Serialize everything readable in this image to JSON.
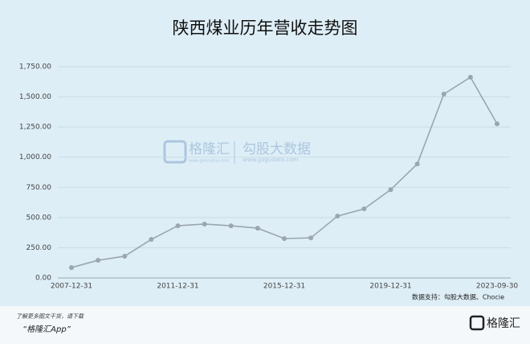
{
  "chart_data": {
    "type": "line",
    "title": "陕西煤业历年营收走势图",
    "categories": [
      "2007-12-31",
      null,
      null,
      null,
      "2011-12-31",
      null,
      null,
      null,
      "2015-12-31",
      null,
      null,
      null,
      "2019-12-31",
      null,
      null,
      null,
      "2023-09-30"
    ],
    "series": [
      {
        "name": "营收",
        "color": "#9aa6b2",
        "values": [
          86,
          146,
          180,
          319,
          432,
          446,
          432,
          412,
          326,
          332,
          512,
          572,
          731,
          944,
          1523,
          1663,
          1277
        ]
      }
    ],
    "ylim": [
      0,
      1750
    ],
    "yticks": [
      {
        "value": 0,
        "label": "0.00"
      },
      {
        "value": 250,
        "label": "250.00"
      },
      {
        "value": 500,
        "label": "500.00"
      },
      {
        "value": 750,
        "label": "750.00"
      },
      {
        "value": 1000,
        "label": "1,000.00"
      },
      {
        "value": 1250,
        "label": "1,250.00"
      },
      {
        "value": 1500,
        "label": "1,500.00"
      },
      {
        "value": 1750,
        "label": "1,750.00"
      }
    ],
    "grid": true,
    "source": "数据支持：勾股大数据、Chocie"
  },
  "watermark": {
    "brand": "格隆汇",
    "site": "www.gelonghui.com",
    "data": "勾股大数据",
    "data_site": "www.gogudata.com"
  },
  "footer": {
    "line1": "了解更多图文干货，请下载",
    "line2": "“格隆汇App”",
    "logo": "格隆汇"
  }
}
